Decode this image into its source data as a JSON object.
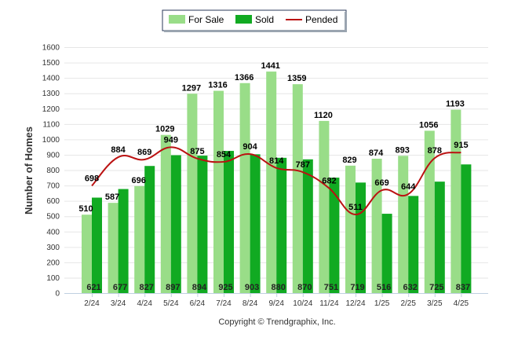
{
  "chart_data": {
    "type": "bar",
    "ylabel": "Number of Homes",
    "xlabel": "",
    "ylim": [
      0,
      1600
    ],
    "yticks": [
      0,
      100,
      200,
      300,
      400,
      500,
      600,
      700,
      800,
      900,
      1000,
      1100,
      1200,
      1300,
      1400,
      1500,
      1600
    ],
    "grid": true,
    "legend_position": "top-center",
    "categories": [
      "2/24",
      "3/24",
      "4/24",
      "5/24",
      "6/24",
      "7/24",
      "8/24",
      "9/24",
      "10/24",
      "11/24",
      "12/24",
      "1/25",
      "2/25",
      "3/25",
      "4/25"
    ],
    "series": [
      {
        "name": "For Sale",
        "type": "bar",
        "color": "#99dd88",
        "values": [
          510,
          587,
          696,
          1029,
          1297,
          1316,
          1366,
          1441,
          1359,
          1120,
          829,
          874,
          893,
          1056,
          1193
        ]
      },
      {
        "name": "Sold",
        "type": "bar",
        "color": "#11aa22",
        "values": [
          621,
          677,
          827,
          897,
          894,
          925,
          903,
          880,
          870,
          751,
          719,
          516,
          632,
          725,
          837
        ]
      },
      {
        "name": "Pended",
        "type": "line",
        "color": "#bb1111",
        "values": [
          698,
          884,
          869,
          949,
          875,
          854,
          904,
          814,
          787,
          682,
          511,
          669,
          644,
          878,
          915
        ]
      }
    ]
  },
  "footer": {
    "copyright": "Copyright © Trendgraphix, Inc."
  }
}
